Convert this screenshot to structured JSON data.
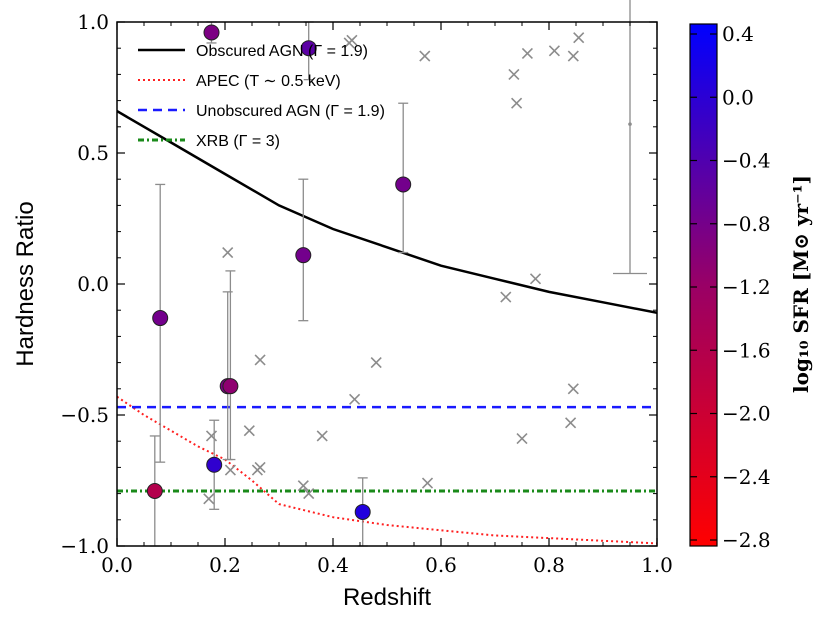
{
  "chart_data": {
    "type": "scatter",
    "xlabel": "Redshift",
    "ylabel": "Hardness Ratio",
    "xlim": [
      0.0,
      1.0
    ],
    "ylim": [
      -1.0,
      1.0
    ],
    "x_tick_labels": [
      "0.0",
      "0.2",
      "0.4",
      "0.6",
      "0.8",
      "1.0"
    ],
    "y_tick_labels": [
      "−1.0",
      "−0.5",
      "0.0",
      "0.5",
      "1.0"
    ],
    "legend": {
      "placement": "top-left",
      "entries": [
        {
          "label": "Obscured AGN (Γ = 1.9)",
          "color": "#000000",
          "style": "solid"
        },
        {
          "label": "APEC (T ∼ 0.5 keV)",
          "color": "#ff2020",
          "style": "dotted"
        },
        {
          "label": "Unobscured AGN (Γ = 1.9)",
          "color": "#1a1aff",
          "style": "dashed"
        },
        {
          "label": "XRB (Γ = 3)",
          "color": "#1a8a1a",
          "style": "dashdot"
        }
      ]
    },
    "colorbar": {
      "label": "log₁₀ SFR [M⊙ yr⁻¹]",
      "range": [
        -2.8,
        0.4
      ],
      "tick_labels": [
        "0.4",
        "0.0",
        "−0.4",
        "−0.8",
        "−1.2",
        "−1.6",
        "−2.0",
        "−2.4",
        "−2.8"
      ],
      "color_low": "#ff0000",
      "color_high": "#0000ff"
    },
    "series": [
      {
        "name": "Obscured AGN (Γ = 1.9)",
        "type": "line",
        "x": [
          0.0,
          0.1,
          0.2,
          0.3,
          0.4,
          0.5,
          0.6,
          0.7,
          0.8,
          0.9,
          1.0
        ],
        "y": [
          0.66,
          0.54,
          0.42,
          0.3,
          0.21,
          0.14,
          0.07,
          0.02,
          -0.03,
          -0.07,
          -0.11
        ]
      },
      {
        "name": "APEC (T ∼ 0.5 keV)",
        "type": "line",
        "x": [
          0.0,
          0.05,
          0.1,
          0.15,
          0.2,
          0.25,
          0.3,
          0.4,
          0.5,
          0.6,
          0.7,
          0.8,
          0.9,
          1.0
        ],
        "y": [
          -0.43,
          -0.5,
          -0.56,
          -0.62,
          -0.67,
          -0.75,
          -0.84,
          -0.89,
          -0.92,
          -0.94,
          -0.96,
          -0.97,
          -0.98,
          -0.99
        ]
      },
      {
        "name": "Unobscured AGN (Γ = 1.9)",
        "type": "hline",
        "y": -0.47
      },
      {
        "name": "XRB (Γ = 3)",
        "type": "hline",
        "y": -0.79
      }
    ],
    "detections": [
      {
        "x": 0.07,
        "y": -0.79,
        "yerr": [
          0.21,
          0.21
        ],
        "sfr": -1.6
      },
      {
        "x": 0.08,
        "y": -0.13,
        "yerr": [
          0.55,
          0.51
        ],
        "sfr": -0.8
      },
      {
        "x": 0.175,
        "y": 0.96,
        "yerr": [
          0.04,
          0.04
        ],
        "sfr": -0.9
      },
      {
        "x": 0.18,
        "y": -0.69,
        "yerr": [
          0.17,
          0.17
        ],
        "sfr": -0.1
      },
      {
        "x": 0.205,
        "y": -0.39,
        "yerr": [
          0.28,
          0.36
        ],
        "sfr": -0.9
      },
      {
        "x": 0.21,
        "y": -0.39,
        "yerr": [
          0.28,
          0.44
        ],
        "sfr": -1.1
      },
      {
        "x": 0.345,
        "y": 0.11,
        "yerr": [
          0.25,
          0.29
        ],
        "sfr": -0.8
      },
      {
        "x": 0.355,
        "y": 0.9,
        "yerr": [
          0.12,
          0.1
        ],
        "sfr": -0.55
      },
      {
        "x": 0.455,
        "y": -0.87,
        "yerr": [
          0.13,
          0.13
        ],
        "sfr": 0.05
      },
      {
        "x": 0.53,
        "y": 0.38,
        "yerr": [
          0.26,
          0.31
        ],
        "sfr": -0.8
      }
    ],
    "limits": {
      "x": [
        0.17,
        0.175,
        0.205,
        0.21,
        0.245,
        0.26,
        0.265,
        0.265,
        0.345,
        0.355,
        0.38,
        0.43,
        0.435,
        0.44,
        0.48,
        0.57,
        0.575,
        0.72,
        0.735,
        0.74,
        0.75,
        0.76,
        0.775,
        0.81,
        0.84,
        0.845,
        0.845,
        0.855
      ],
      "y": [
        -0.82,
        -0.58,
        0.12,
        -0.71,
        -0.56,
        -0.71,
        -0.7,
        -0.29,
        -0.77,
        -0.8,
        -0.58,
        0.92,
        0.93,
        -0.44,
        -0.3,
        0.87,
        -0.76,
        -0.05,
        0.8,
        0.69,
        -0.59,
        0.88,
        0.02,
        0.89,
        -0.53,
        -0.4,
        0.87,
        0.94
      ]
    },
    "stack_point": {
      "x": 0.95,
      "y": 0.61,
      "yerr": [
        0.57,
        0.48
      ]
    },
    "annotations": [],
    "grid": false
  }
}
